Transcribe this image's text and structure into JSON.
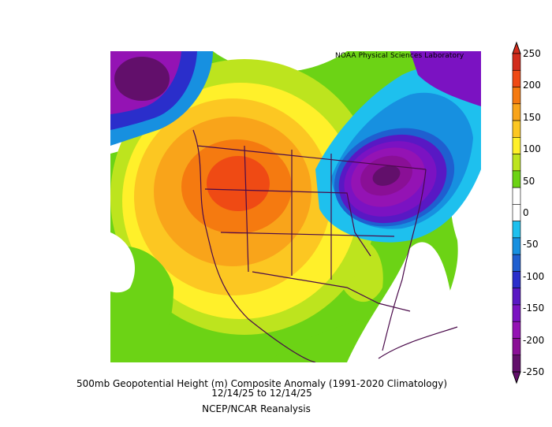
{
  "map": {
    "credit": "NOAA Physical Sciences Laboratory",
    "caption_line1": "500mb Geopotential Height (m) Composite Anomaly (1991-2020 Climatology)",
    "caption_line2": "12/14/25  to 12/14/25",
    "caption_line3": "NCEP/NCAR Reanalysis"
  },
  "colorbar": {
    "labels": [
      "250",
      "200",
      "150",
      "100",
      "50",
      "0",
      "-50",
      "-100",
      "-150",
      "-200",
      "-250"
    ],
    "colors": [
      "#d22c1c",
      "#ef4a14",
      "#f57a10",
      "#f9a41a",
      "#fcc722",
      "#fff02a",
      "#bde41e",
      "#6cd315",
      "#ffffff",
      "#ffffff",
      "#1ec0ee",
      "#1790e0",
      "#1f5fd0",
      "#2a2ecb",
      "#5918c4",
      "#7b12c2",
      "#9413b4",
      "#8a0f96",
      "#620f6b"
    ]
  }
}
